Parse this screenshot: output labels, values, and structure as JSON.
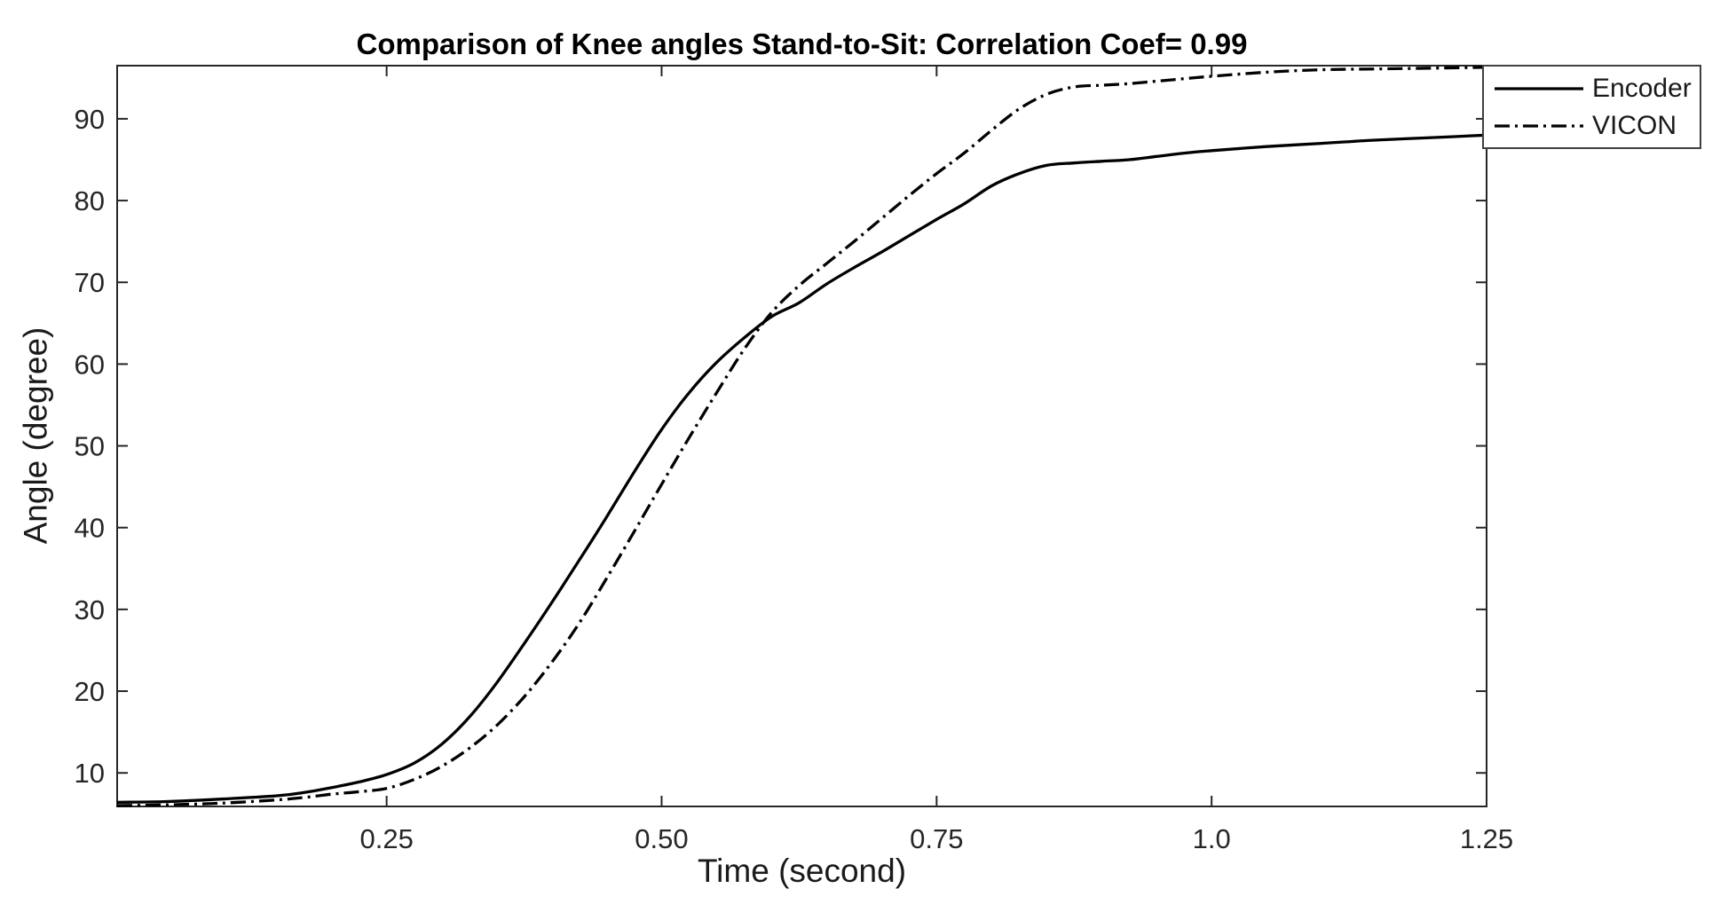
{
  "figure": {
    "background": "#ffffff",
    "text_color": "#1a1a1a",
    "axis_color": "#262626"
  },
  "chart_data": {
    "type": "line",
    "title": "Comparison of Knee angles Stand-to-Sit: Correlation Coef= 0.99",
    "xlabel": "Time (second)",
    "ylabel": "Angle (degree)",
    "xlim": [
      0.005,
      1.25
    ],
    "ylim": [
      5.9,
      96.5
    ],
    "grid": false,
    "box": true,
    "ticks_direction": "in",
    "legend_position": "outside-top-right",
    "xticks": {
      "values": [
        0.25,
        0.5,
        0.75,
        1.0,
        1.25
      ],
      "labels": [
        "0.25",
        "0.50",
        "0.75",
        "1.0",
        "1.25"
      ]
    },
    "yticks": {
      "values": [
        10,
        20,
        30,
        40,
        50,
        60,
        70,
        80,
        90
      ],
      "labels": [
        "10",
        "20",
        "30",
        "40",
        "50",
        "60",
        "70",
        "80",
        "90"
      ]
    },
    "x": [
      0.005,
      0.05,
      0.1,
      0.15,
      0.175,
      0.2,
      0.225,
      0.25,
      0.275,
      0.3,
      0.325,
      0.35,
      0.375,
      0.4,
      0.425,
      0.45,
      0.475,
      0.5,
      0.525,
      0.55,
      0.575,
      0.6,
      0.625,
      0.65,
      0.675,
      0.7,
      0.725,
      0.75,
      0.775,
      0.8,
      0.825,
      0.85,
      0.875,
      0.9,
      0.925,
      0.95,
      0.975,
      1.0,
      1.05,
      1.1,
      1.15,
      1.2,
      1.25
    ],
    "series": [
      {
        "name": "Encoder",
        "line_style": "solid",
        "color": "#000000",
        "width": 3.3,
        "dash_pattern": null,
        "values": [
          6.4,
          6.5,
          6.8,
          7.2,
          7.6,
          8.2,
          8.9,
          9.8,
          11.2,
          13.5,
          16.8,
          21.0,
          25.8,
          30.8,
          36.0,
          41.3,
          46.8,
          52.0,
          56.5,
          60.2,
          63.2,
          65.8,
          67.5,
          69.8,
          71.8,
          73.7,
          75.7,
          77.7,
          79.6,
          81.8,
          83.3,
          84.3,
          84.6,
          84.8,
          85.0,
          85.4,
          85.8,
          86.1,
          86.6,
          87.0,
          87.4,
          87.7,
          88.0
        ]
      },
      {
        "name": "VICON",
        "line_style": "dash-dot",
        "color": "#000000",
        "width": 3.3,
        "dash_pattern": [
          17,
          6,
          3,
          6
        ],
        "values": [
          6.0,
          6.1,
          6.3,
          6.7,
          7.0,
          7.4,
          7.7,
          8.1,
          9.2,
          10.8,
          13.0,
          15.8,
          19.3,
          23.5,
          28.3,
          33.8,
          39.5,
          45.3,
          51.0,
          56.5,
          61.8,
          66.3,
          69.6,
          72.3,
          75.0,
          77.8,
          80.6,
          83.3,
          85.8,
          88.6,
          91.2,
          93.0,
          93.9,
          94.1,
          94.3,
          94.6,
          94.9,
          95.2,
          95.7,
          96.0,
          96.1,
          96.2,
          96.3
        ]
      }
    ]
  }
}
